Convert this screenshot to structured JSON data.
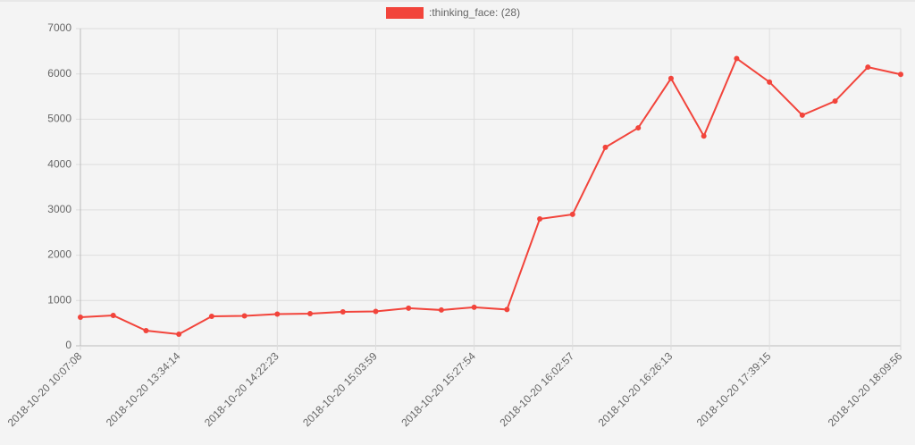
{
  "chart_data": {
    "type": "line",
    "categories": [
      "2018-10-20 10:07:08",
      null,
      null,
      "2018-10-20 13:34:14",
      null,
      null,
      "2018-10-20 14:22:23",
      null,
      null,
      "2018-10-20 15:03:59",
      null,
      null,
      "2018-10-20 15:27:54",
      null,
      null,
      "2018-10-20 16:02:57",
      null,
      null,
      "2018-10-20 16:26:13",
      null,
      null,
      "2018-10-20 17:39:15",
      null,
      null,
      null,
      "2018-10-20 18:09:56"
    ],
    "series": [
      {
        "name": ":thinking_face: (28)",
        "color": "#f2443b",
        "values": [
          630,
          670,
          335,
          256,
          650,
          660,
          700,
          710,
          750,
          760,
          830,
          790,
          850,
          800,
          2800,
          2900,
          4380,
          4810,
          5900,
          4630,
          6340,
          5820,
          5090,
          5400,
          6150,
          5990
        ]
      }
    ],
    "ylim": [
      0,
      7000
    ],
    "yticks": [
      0,
      1000,
      2000,
      3000,
      4000,
      5000,
      6000,
      7000
    ],
    "grid": true,
    "legend": "top"
  }
}
